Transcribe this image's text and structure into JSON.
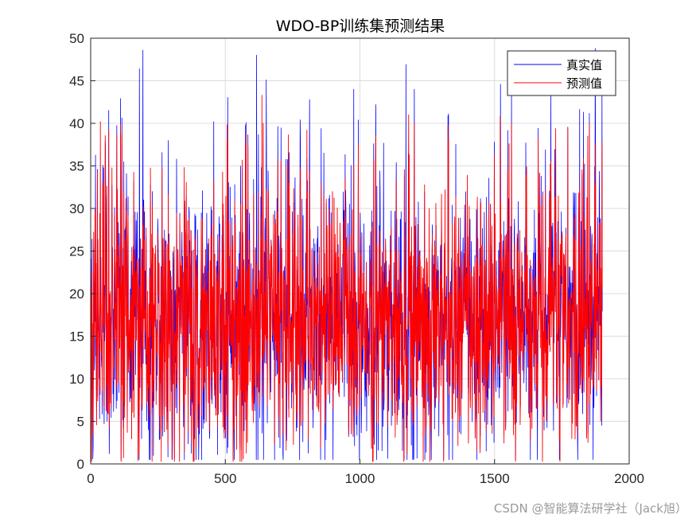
{
  "chart_data": {
    "type": "line",
    "title": "WDO-BP训练集预测结果",
    "xlabel": "",
    "ylabel": "",
    "xlim": [
      0,
      2000
    ],
    "ylim": [
      0,
      50
    ],
    "x_ticks": [
      "0",
      "500",
      "1000",
      "1500",
      "2000"
    ],
    "y_ticks": [
      "0",
      "5",
      "10",
      "15",
      "20",
      "25",
      "30",
      "35",
      "40",
      "45",
      "50"
    ],
    "grid": true,
    "legend_position": "top-right",
    "n_points": 1900,
    "series": [
      {
        "name": "真实值",
        "color": "#0000ff",
        "peaks": [
          [
            180,
            46.4
          ],
          [
            193,
            48.6
          ],
          [
            615,
            48.0
          ],
          [
            651,
            45.1
          ],
          [
            1170,
            46.9
          ],
          [
            1521,
            44.6
          ],
          [
            1873,
            48.8
          ]
        ],
        "min": 0.5
      },
      {
        "name": "预测值",
        "color": "#ff0000",
        "peaks": [
          [
            35,
            40.2
          ],
          [
            635,
            43.3
          ],
          [
            1180,
            41.0
          ],
          [
            1520,
            40.8
          ],
          [
            1845,
            38.5
          ]
        ],
        "min": 0.3
      }
    ]
  },
  "watermark": "CSDN @智能算法研学社（Jack旭）"
}
